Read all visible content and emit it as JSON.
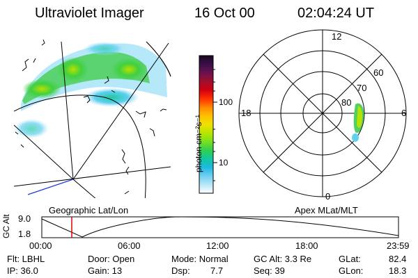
{
  "header": {
    "title": "Ultraviolet Imager",
    "date": "16 Oct 00",
    "time": "02:04:24 UT"
  },
  "colorbar": {
    "unit_label": "photon cm⁻²s⁻¹",
    "ticks": [
      "100",
      "10"
    ],
    "colors": [
      "#1a0820",
      "#3a0f4a",
      "#6a1050",
      "#a0102a",
      "#d00010",
      "#ff3000",
      "#ff8800",
      "#ffc000",
      "#f0e000",
      "#b8e600",
      "#78e020",
      "#30d050",
      "#10c8a0",
      "#20b8e0",
      "#70d0f0",
      "#b8e8f8",
      "#ffffff"
    ]
  },
  "geo_panel": {
    "label": "Geographic Lat/Lon"
  },
  "polar_panel": {
    "label": "Apex MLat/MLT",
    "mlt_labels": {
      "top": "12",
      "left": "18",
      "right": "6",
      "bottom": "0"
    },
    "lat_labels": [
      "60",
      "70",
      "80"
    ]
  },
  "timeline": {
    "axis_label": "GC Alt",
    "yticks": [
      "9.0",
      "1.8"
    ],
    "xticks": [
      "00:00",
      "06:00",
      "12:00",
      "18:00",
      "23:59"
    ],
    "marker_color": "#e00000",
    "marker_time": "02:04"
  },
  "status": {
    "flt": "Flt: LBHL",
    "ip": "IP: 36.0",
    "door": "Door: Open",
    "gain": "Gain: 13",
    "mode": "Mode: Normal",
    "dsp_label": "Dsp:",
    "dsp_value": "7.7",
    "gcalt": "GC Alt: 3.3 Re",
    "seq": "Seq: 39",
    "glat_label": "GLat:",
    "glat_value": "82.4",
    "glon_label": "GLon:",
    "glon_value": "18.3"
  }
}
